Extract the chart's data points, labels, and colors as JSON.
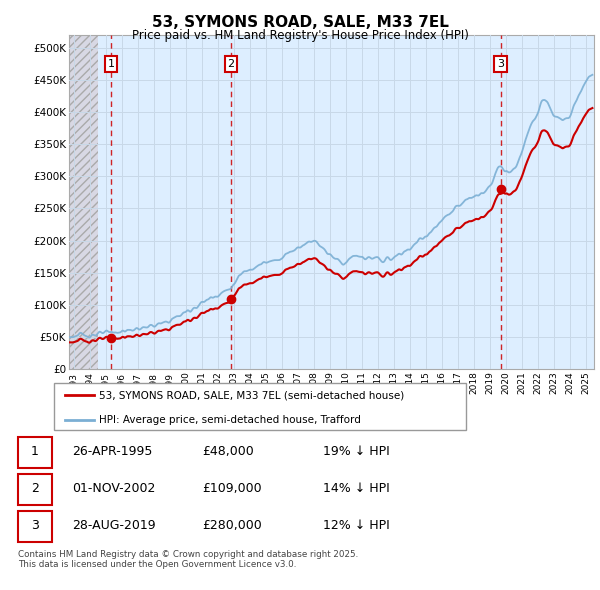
{
  "title": "53, SYMONS ROAD, SALE, M33 7EL",
  "subtitle": "Price paid vs. HM Land Registry's House Price Index (HPI)",
  "ylim": [
    0,
    520000
  ],
  "yticks": [
    0,
    50000,
    100000,
    150000,
    200000,
    250000,
    300000,
    350000,
    400000,
    450000,
    500000
  ],
  "ytick_labels": [
    "£0",
    "£50K",
    "£100K",
    "£150K",
    "£200K",
    "£250K",
    "£300K",
    "£350K",
    "£400K",
    "£450K",
    "£500K"
  ],
  "sale_dates_decimal": [
    1995.32,
    2002.83,
    2019.66
  ],
  "sale_prices": [
    48000,
    109000,
    280000
  ],
  "sale_annotations": [
    "1",
    "2",
    "3"
  ],
  "hpi_color": "#7bafd4",
  "sale_color": "#cc0000",
  "vline_color": "#cc0000",
  "grid_color": "#c8d8e8",
  "bg_color": "#ddeeff",
  "hatch_color": "#c8c8d8",
  "legend_label_sale": "53, SYMONS ROAD, SALE, M33 7EL (semi-detached house)",
  "legend_label_hpi": "HPI: Average price, semi-detached house, Trafford",
  "table_data": [
    [
      "1",
      "26-APR-1995",
      "£48,000",
      "19% ↓ HPI"
    ],
    [
      "2",
      "01-NOV-2002",
      "£109,000",
      "14% ↓ HPI"
    ],
    [
      "3",
      "28-AUG-2019",
      "£280,000",
      "12% ↓ HPI"
    ]
  ],
  "footnote": "Contains HM Land Registry data © Crown copyright and database right 2025.\nThis data is licensed under the Open Government Licence v3.0.",
  "xlim_start": 1992.7,
  "xlim_end": 2025.5,
  "xtick_years": [
    1993,
    1994,
    1995,
    1996,
    1997,
    1998,
    1999,
    2000,
    2001,
    2002,
    2003,
    2004,
    2005,
    2006,
    2007,
    2008,
    2009,
    2010,
    2011,
    2012,
    2013,
    2014,
    2015,
    2016,
    2017,
    2018,
    2019,
    2020,
    2021,
    2022,
    2023,
    2024,
    2025
  ]
}
